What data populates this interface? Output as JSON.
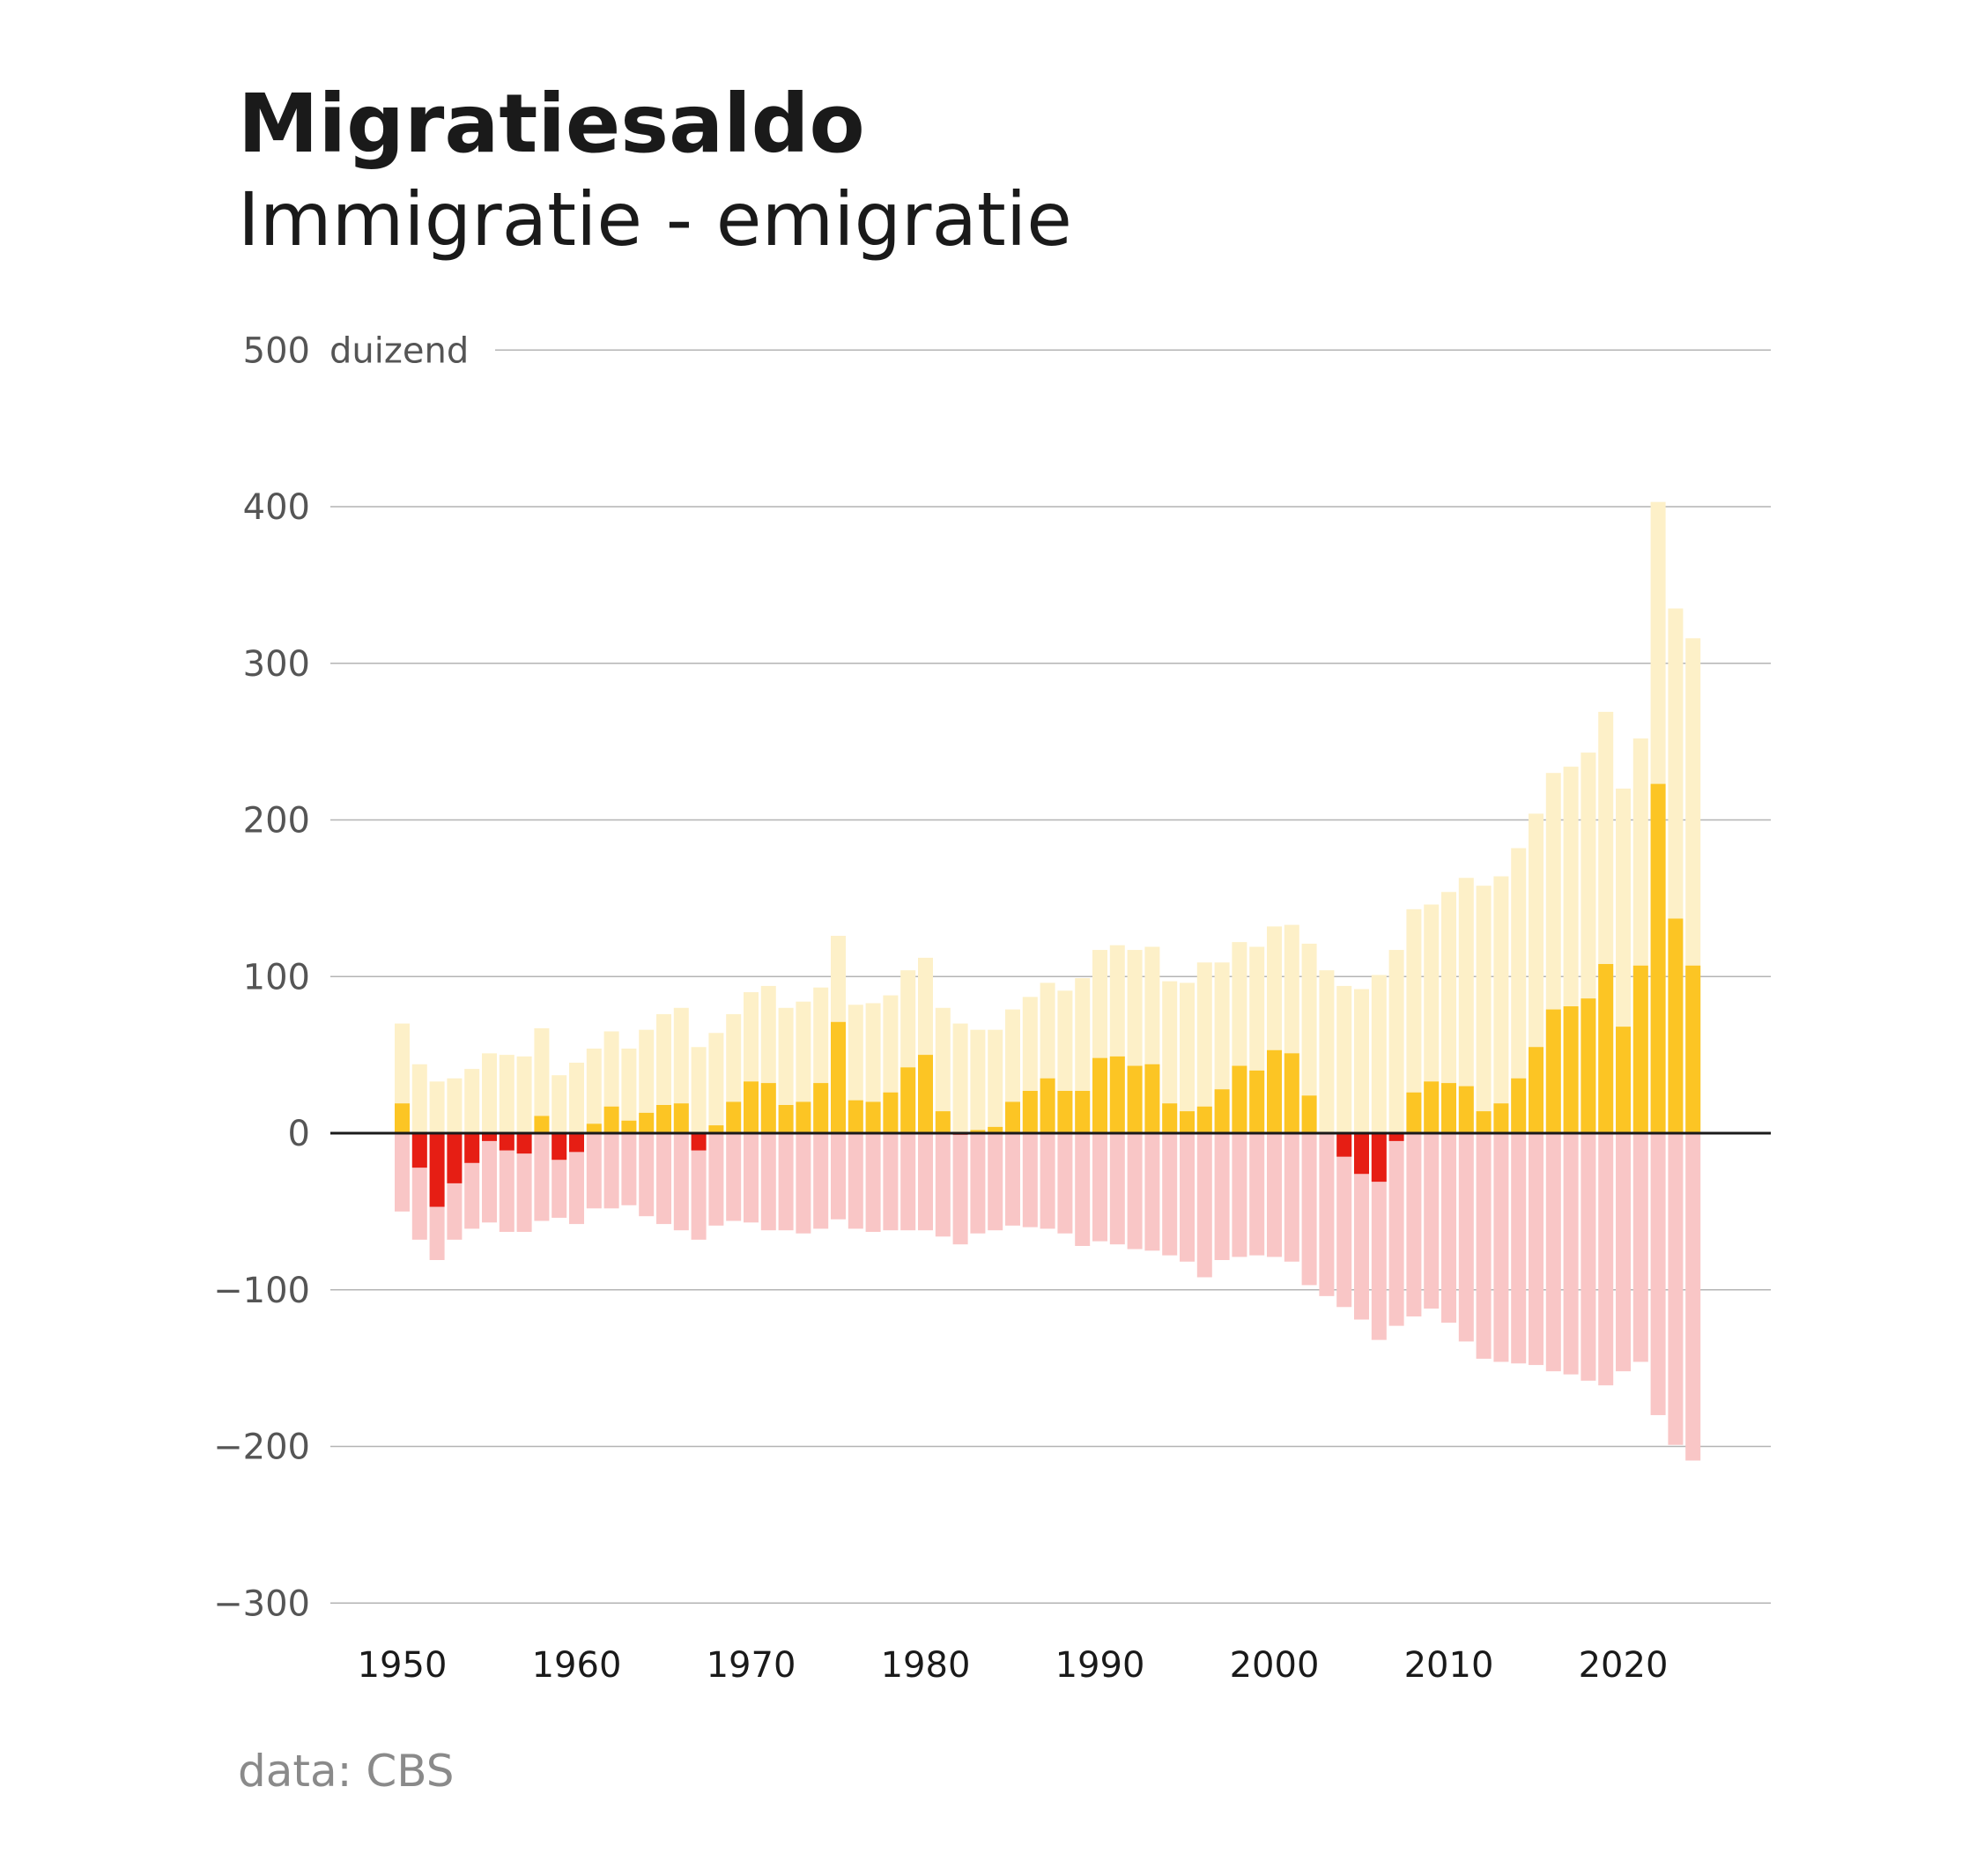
{
  "chart_data": {
    "type": "bar",
    "title": "Migratiesaldo",
    "subtitle": "Immigratie - emigratie",
    "ylabel_unit": "duizend",
    "ylim": [
      -300,
      500
    ],
    "yticks": [
      500,
      400,
      300,
      200,
      100,
      0,
      -100,
      -200,
      -300
    ],
    "xticks": [
      1950,
      1960,
      1970,
      1980,
      1990,
      2000,
      2010,
      2020
    ],
    "source": "data: CBS",
    "grid": true,
    "colors": {
      "immigration": "#fdf0c8",
      "emigration": "#f9c6c6",
      "net_positive": "#fcc524",
      "net_negative": "#e61e14",
      "gridline": "#b4b4b4",
      "zeroline": "#1a1a1a"
    },
    "years": [
      1950,
      1951,
      1952,
      1953,
      1954,
      1955,
      1956,
      1957,
      1958,
      1959,
      1960,
      1961,
      1962,
      1963,
      1964,
      1965,
      1966,
      1967,
      1968,
      1969,
      1970,
      1971,
      1972,
      1973,
      1974,
      1975,
      1976,
      1977,
      1978,
      1979,
      1980,
      1981,
      1982,
      1983,
      1984,
      1985,
      1986,
      1987,
      1988,
      1989,
      1990,
      1991,
      1992,
      1993,
      1994,
      1995,
      1996,
      1997,
      1998,
      1999,
      2000,
      2001,
      2002,
      2003,
      2004,
      2005,
      2006,
      2007,
      2008,
      2009,
      2010,
      2011,
      2012,
      2013,
      2014,
      2015,
      2016,
      2017,
      2018,
      2019,
      2020,
      2021,
      2022,
      2023,
      2024
    ],
    "series": [
      {
        "name": "immigratie",
        "values": [
          70,
          44,
          33,
          35,
          41,
          51,
          50,
          49,
          67,
          37,
          45,
          54,
          65,
          54,
          66,
          76,
          80,
          55,
          64,
          76,
          90,
          94,
          80,
          84,
          93,
          126,
          82,
          83,
          88,
          104,
          112,
          80,
          70,
          66,
          66,
          79,
          87,
          96,
          91,
          99,
          117,
          120,
          117,
          119,
          97,
          96,
          109,
          109,
          122,
          119,
          132,
          133,
          121,
          104,
          94,
          92,
          101,
          117,
          143,
          146,
          154,
          163,
          158,
          164,
          182,
          204,
          230,
          234,
          243,
          269,
          220,
          252,
          403,
          335,
          316
        ]
      },
      {
        "name": "emigratie",
        "values": [
          -50,
          -68,
          -81,
          -68,
          -61,
          -57,
          -63,
          -63,
          -56,
          -54,
          -58,
          -48,
          -48,
          -46,
          -53,
          -58,
          -62,
          -68,
          -59,
          -56,
          -57,
          -62,
          -62,
          -64,
          -61,
          -55,
          -61,
          -63,
          -62,
          -62,
          -62,
          -66,
          -71,
          -64,
          -62,
          -59,
          -60,
          -61,
          -64,
          -72,
          -69,
          -71,
          -74,
          -75,
          -78,
          -82,
          -92,
          -81,
          -79,
          -78,
          -79,
          -82,
          -97,
          -104,
          -111,
          -119,
          -132,
          -123,
          -117,
          -112,
          -121,
          -133,
          -144,
          -146,
          -147,
          -148,
          -152,
          -154,
          -158,
          -161,
          -152,
          -146,
          -180,
          -199,
          -209
        ]
      },
      {
        "name": "saldo",
        "values": [
          19,
          -22,
          -47,
          -32,
          -19,
          -5,
          -11,
          -13,
          11,
          -17,
          -12,
          6,
          17,
          8,
          13,
          18,
          19,
          -11,
          5,
          20,
          33,
          32,
          18,
          20,
          32,
          71,
          21,
          20,
          26,
          42,
          50,
          14,
          -1,
          2,
          4,
          20,
          27,
          35,
          27,
          27,
          48,
          49,
          43,
          44,
          19,
          14,
          17,
          28,
          43,
          40,
          53,
          51,
          24,
          0,
          -15,
          -26,
          -31,
          -5,
          26,
          33,
          32,
          30,
          14,
          19,
          35,
          55,
          79,
          81,
          86,
          108,
          68,
          107,
          223,
          137,
          107
        ]
      }
    ]
  }
}
